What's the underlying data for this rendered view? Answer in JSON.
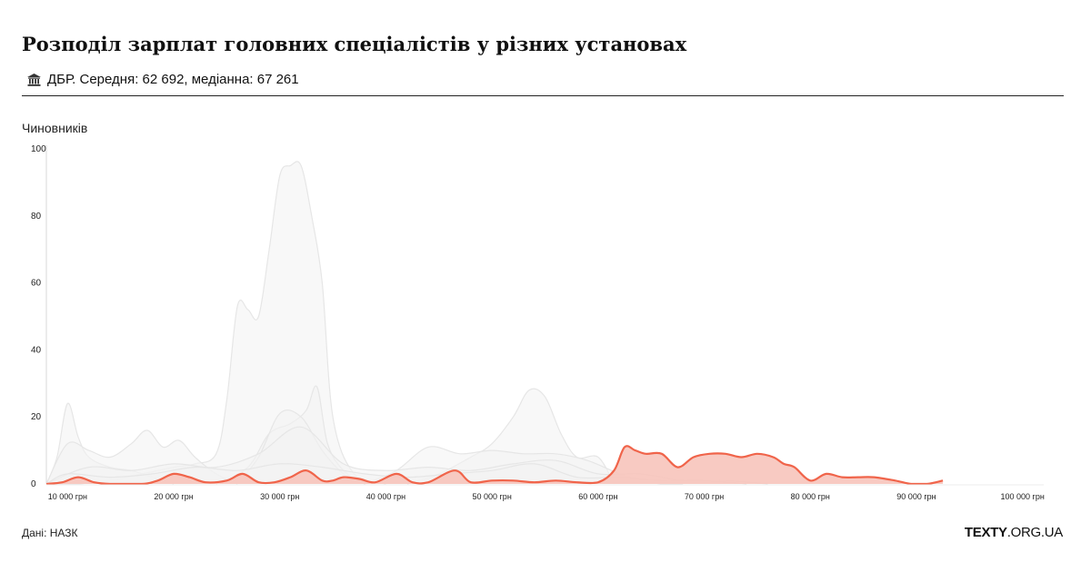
{
  "header": {
    "title": "Розподіл зарплат головних спеціалістів у різних установах",
    "subtitle": "ДБР. Середня: 62 692, медіанна: 67 261",
    "subtitle_icon": "institution-icon"
  },
  "footer": {
    "source": "Дані: НАЗК",
    "brand_bold": "TEXTY",
    "brand_rest": ".ORG.UA"
  },
  "colors": {
    "highlight_line": "#f0644a",
    "highlight_fill": "#f7c4bb",
    "background_fill": "#f2f2f2",
    "background_line": "#e6e6e6"
  },
  "chart_data": {
    "type": "area",
    "ylabel": "Чиновників",
    "xlabel": "",
    "xlim": [
      8000,
      102000
    ],
    "ylim": [
      0,
      100
    ],
    "xticks": [
      10000,
      20000,
      30000,
      40000,
      50000,
      60000,
      70000,
      80000,
      90000,
      100000
    ],
    "xtick_labels": [
      "10 000 грн",
      "20 000 грн",
      "30 000 грн",
      "40 000 грн",
      "50 000 грн",
      "60 000 грн",
      "70 000 грн",
      "80 000 грн",
      "90 000 грн",
      "100 000 грн"
    ],
    "yticks": [
      0,
      20,
      40,
      60,
      80,
      100
    ],
    "ytick_labels": [
      "0",
      "20",
      "40",
      "60",
      "80",
      "100"
    ],
    "grid": false,
    "highlight": {
      "name": "ДБР",
      "x": [
        8000,
        9500,
        11000,
        12500,
        14000,
        17000,
        18500,
        20000,
        21500,
        23000,
        25000,
        26500,
        28000,
        29500,
        31000,
        32500,
        34000,
        35000,
        36000,
        37500,
        39000,
        41000,
        42500,
        44000,
        46500,
        48000,
        50000,
        52000,
        54000,
        56000,
        58000,
        60000,
        61500,
        62500,
        63500,
        64500,
        66000,
        67500,
        69000,
        70500,
        72000,
        73500,
        75000,
        76500,
        77500,
        78500,
        80000,
        81500,
        83000,
        84500,
        86000,
        88000,
        89500,
        91000,
        92500
      ],
      "y": [
        0,
        0.5,
        2,
        0.5,
        0,
        0,
        1,
        3,
        2,
        0.5,
        1,
        3,
        0.5,
        0.5,
        2,
        4,
        1,
        1,
        2,
        1.5,
        0.5,
        3,
        0.5,
        0.5,
        4,
        0.5,
        1,
        1,
        0.5,
        1,
        0.5,
        0.5,
        4,
        11,
        10,
        9,
        9,
        5,
        8,
        9,
        9,
        8,
        9,
        8,
        6,
        5,
        1,
        3,
        2,
        2,
        2,
        1,
        0,
        0,
        1
      ]
    },
    "background_series": [
      {
        "x": [
          8000,
          9500,
          11000,
          14000,
          17000,
          20000,
          22000,
          24000,
          25000,
          26000,
          27000,
          28000,
          29000,
          30000,
          31000,
          32000,
          33000,
          34000,
          35000,
          37000,
          40000
        ],
        "y": [
          0,
          0,
          0,
          1,
          3,
          5,
          6,
          9,
          25,
          53,
          52,
          50,
          70,
          92,
          95,
          95,
          80,
          60,
          20,
          3,
          0
        ]
      },
      {
        "x": [
          8000,
          9000,
          10000,
          11000,
          12000,
          14000,
          16000,
          18000,
          20000
        ],
        "y": [
          0,
          8,
          24,
          14,
          8,
          5,
          4,
          2,
          0
        ]
      },
      {
        "x": [
          8000,
          10000,
          12000,
          14000,
          16000,
          17500,
          19000,
          20500,
          22000,
          24000,
          26000
        ],
        "y": [
          0,
          12,
          10,
          8,
          12,
          16,
          11,
          13,
          8,
          3,
          0
        ]
      },
      {
        "x": [
          42000,
          45000,
          48000,
          50000,
          52000,
          53500,
          55000,
          56500,
          58000,
          60000,
          61500
        ],
        "y": [
          0,
          3,
          8,
          12,
          20,
          28,
          26,
          15,
          8,
          8,
          0
        ]
      },
      {
        "x": [
          24000,
          27000,
          29000,
          31000,
          32500,
          33500,
          34500,
          36000,
          38000
        ],
        "y": [
          0,
          5,
          15,
          18,
          22,
          29,
          12,
          4,
          0
        ]
      },
      {
        "x": [
          26000,
          28000,
          30000,
          32000,
          34000,
          36000,
          38000
        ],
        "y": [
          0,
          8,
          21,
          20,
          10,
          3,
          0
        ]
      },
      {
        "x": [
          38000,
          41000,
          44000,
          47000,
          50000,
          53000,
          56000,
          59000,
          62000,
          64000,
          66000,
          68000
        ],
        "y": [
          0,
          4,
          11,
          9,
          10,
          9,
          9,
          7,
          3,
          1,
          0,
          0
        ]
      },
      {
        "x": [
          8000,
          12000,
          16000,
          20000,
          24000,
          28000,
          32000,
          36000,
          40000,
          44000,
          48000,
          52000,
          56000,
          60000,
          64000,
          68000,
          72000,
          76000
        ],
        "y": [
          0,
          5,
          4,
          6,
          5,
          9,
          17,
          6,
          4,
          5,
          4,
          6,
          7,
          3,
          3,
          1,
          1,
          0
        ]
      },
      {
        "x": [
          8000,
          10000,
          14000,
          18000,
          22000,
          26000,
          30000,
          34000,
          38000,
          42000,
          46000,
          50000,
          54000,
          58000,
          62000,
          66000,
          70000,
          74000
        ],
        "y": [
          0,
          3,
          2,
          3,
          5,
          4,
          6,
          5,
          3,
          2,
          3,
          4,
          6,
          2,
          2,
          1,
          1,
          0
        ]
      }
    ]
  }
}
